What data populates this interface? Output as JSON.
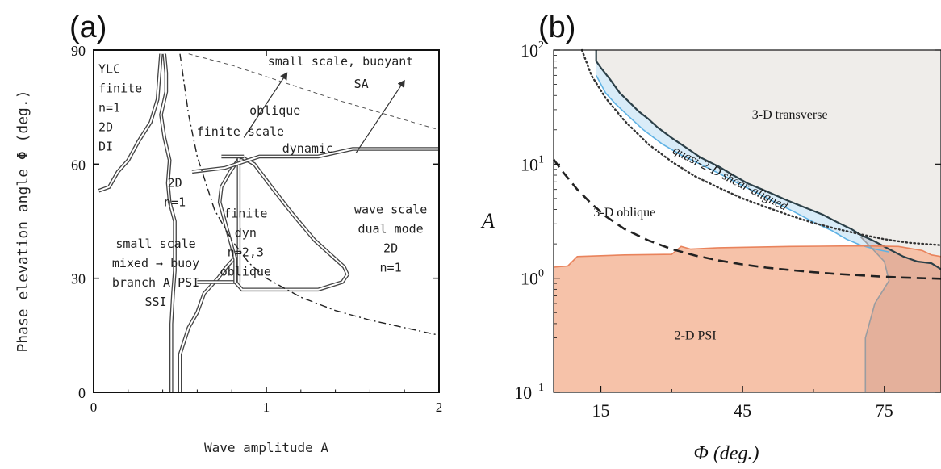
{
  "chart_data": [
    {
      "type": "area",
      "panel_label": "(a)",
      "xlabel": "Wave amplitude A",
      "ylabel": "Phase elevation angle Φ (deg.)",
      "xlim": [
        0,
        2
      ],
      "ylim": [
        0,
        90
      ],
      "x_ticks": [
        "0",
        "1",
        "2"
      ],
      "y_ticks": [
        "0",
        "30",
        "60",
        "90"
      ],
      "grid": false,
      "regions": [
        {
          "label_lines": [
            "YLC",
            "finite",
            "n=1",
            "2D",
            "DI"
          ],
          "x": 0.07,
          "y": 84
        },
        {
          "label_lines": [
            "small scale, buoyant"
          ],
          "x": 1.43,
          "y": 86
        },
        {
          "label_lines": [
            "SA"
          ],
          "x": 1.55,
          "y": 80
        },
        {
          "label_lines": [
            "oblique"
          ],
          "x": 1.05,
          "y": 73
        },
        {
          "label_lines": [
            "finite scale"
          ],
          "x": 0.85,
          "y": 67.5
        },
        {
          "label_lines": [
            "dynamic"
          ],
          "x": 1.24,
          "y": 63
        },
        {
          "label_lines": [
            "2D",
            "n=1"
          ],
          "x": 0.47,
          "y": 54
        },
        {
          "label_lines": [
            "small scale",
            "mixed → buoy",
            "branch A PSI",
            "SSI"
          ],
          "x": 0.36,
          "y": 38
        },
        {
          "label_lines": [
            "finite",
            "dyn",
            "n=2,3",
            "oblique"
          ],
          "x": 0.88,
          "y": 46
        },
        {
          "label_lines": [
            "wave scale",
            "dual mode",
            "2D",
            "n=1"
          ],
          "x": 1.72,
          "y": 47
        }
      ],
      "boundaries": [
        {
          "style": "double",
          "points": [
            [
              0.03,
              53
            ],
            [
              0.09,
              54
            ],
            [
              0.14,
              58
            ],
            [
              0.2,
              61
            ],
            [
              0.26,
              66
            ],
            [
              0.33,
              71
            ],
            [
              0.37,
              77
            ],
            [
              0.38,
              83
            ],
            [
              0.39,
              89
            ]
          ]
        },
        {
          "style": "double",
          "points": [
            [
              0.41,
              89
            ],
            [
              0.42,
              84
            ],
            [
              0.42,
              79
            ],
            [
              0.39,
              73
            ],
            [
              0.41,
              67
            ],
            [
              0.44,
              61
            ],
            [
              0.43,
              55
            ],
            [
              0.44,
              50
            ],
            [
              0.47,
              45
            ],
            [
              0.47,
              39
            ],
            [
              0.47,
              32
            ],
            [
              0.46,
              26
            ],
            [
              0.45,
              18
            ],
            [
              0.45,
              8
            ],
            [
              0.45,
              0
            ]
          ]
        },
        {
          "style": "double",
          "points": [
            [
              0.5,
              0
            ],
            [
              0.5,
              10
            ],
            [
              0.55,
              17
            ],
            [
              0.6,
              21
            ],
            [
              0.64,
              26
            ],
            [
              0.72,
              30
            ],
            [
              0.77,
              33
            ],
            [
              0.83,
              36
            ]
          ]
        },
        {
          "style": "double",
          "points": [
            [
              0.6,
              29
            ],
            [
              0.84,
              29
            ]
          ]
        },
        {
          "style": "double",
          "points": [
            [
              0.85,
              62
            ],
            [
              0.79,
              58
            ],
            [
              0.74,
              54
            ],
            [
              0.73,
              50
            ],
            [
              0.76,
              45
            ],
            [
              0.79,
              40
            ],
            [
              0.82,
              35
            ],
            [
              0.82,
              29
            ],
            [
              0.86,
              27
            ],
            [
              0.96,
              27
            ],
            [
              1.12,
              27
            ],
            [
              1.3,
              27
            ],
            [
              1.44,
              29
            ],
            [
              1.47,
              31
            ],
            [
              1.45,
              33
            ],
            [
              1.28,
              40
            ],
            [
              1.15,
              47
            ],
            [
              1.03,
              54
            ],
            [
              0.93,
              60
            ],
            [
              0.85,
              62
            ]
          ]
        },
        {
          "style": "double",
          "points": [
            [
              0.84,
              29
            ],
            [
              0.84,
              44
            ],
            [
              0.84,
              62
            ]
          ]
        },
        {
          "style": "double",
          "points": [
            [
              0.57,
              58
            ],
            [
              0.76,
              59
            ],
            [
              0.96,
              62
            ],
            [
              1.12,
              62
            ],
            [
              1.3,
              62
            ],
            [
              1.5,
              64
            ],
            [
              1.78,
              64
            ],
            [
              2.0,
              64
            ]
          ]
        },
        {
          "style": "double",
          "points": [
            [
              0.74,
              62
            ],
            [
              0.87,
              62
            ]
          ]
        },
        {
          "style": "dashed",
          "points": [
            [
              0.55,
              89
            ],
            [
              0.8,
              86
            ],
            [
              1.1,
              81.5
            ],
            [
              1.4,
              77
            ],
            [
              1.7,
              73
            ],
            [
              2.0,
              69
            ]
          ]
        },
        {
          "style": "dashdot",
          "points": [
            [
              0.5,
              89
            ],
            [
              0.55,
              73
            ],
            [
              0.6,
              62
            ],
            [
              0.7,
              48
            ],
            [
              0.8,
              40
            ],
            [
              0.9,
              34
            ],
            [
              1.0,
              30
            ],
            [
              1.2,
              25
            ],
            [
              1.4,
              21.5
            ],
            [
              1.6,
              19
            ],
            [
              1.8,
              17
            ],
            [
              2.0,
              15
            ]
          ]
        }
      ],
      "arrows": [
        {
          "from": [
            0.87,
            67
          ],
          "to": [
            1.12,
            84
          ]
        },
        {
          "from": [
            1.52,
            63
          ],
          "to": [
            1.8,
            82
          ]
        }
      ]
    },
    {
      "type": "area",
      "panel_label": "(b)",
      "xlabel": "Φ (deg.)",
      "ylabel": "A",
      "xlim": [
        5,
        87
      ],
      "ylim": [
        0.1,
        100
      ],
      "yscale": "log",
      "x_ticks": [
        15,
        45,
        75
      ],
      "y_ticks": [
        "10^-1",
        "10^0",
        "10^1",
        "10^2"
      ],
      "grid": false,
      "regions": [
        {
          "label": "3-D transverse",
          "x": 55,
          "y": 25,
          "color": "#efedea"
        },
        {
          "label": "quasi-2-D shear-aligned",
          "x": 42,
          "y": 7,
          "color": "#d9ecf8",
          "rotate": 27
        },
        {
          "label": "3-D oblique",
          "x": 20,
          "y": 3.5
        },
        {
          "label": "2-D PSI",
          "x": 35,
          "y": 0.29,
          "color": "#f6c2a9"
        }
      ],
      "series": [
        {
          "role": "boundary",
          "color": "#2c4048",
          "points": [
            [
              14,
              100
            ],
            [
              14,
              80
            ],
            [
              15,
              70
            ],
            [
              17,
              55
            ],
            [
              19,
              42
            ],
            [
              21,
              35
            ],
            [
              23,
              29
            ],
            [
              25,
              25
            ],
            [
              27,
              21
            ],
            [
              30,
              17
            ],
            [
              33,
              14
            ],
            [
              36,
              11.5
            ],
            [
              40,
              9.5
            ],
            [
              43,
              8
            ],
            [
              46,
              6.8
            ],
            [
              50,
              5.8
            ],
            [
              54,
              4.9
            ],
            [
              58,
              4.2
            ],
            [
              62,
              3.6
            ],
            [
              65,
              3.1
            ],
            [
              68,
              2.7
            ],
            [
              70,
              2.4
            ],
            [
              73,
              2.1
            ],
            [
              76,
              1.8
            ],
            [
              79,
              1.55
            ],
            [
              82,
              1.4
            ],
            [
              85,
              1.35
            ],
            [
              87,
              1.2
            ]
          ]
        },
        {
          "role": "boundary",
          "color": "#5fb2e4",
          "points": [
            [
              14,
              60
            ],
            [
              16,
              42
            ],
            [
              18,
              34
            ],
            [
              21,
              26
            ],
            [
              24,
              20
            ],
            [
              28,
              15
            ],
            [
              32,
              12
            ],
            [
              36,
              10
            ],
            [
              40,
              8.3
            ],
            [
              44,
              6.8
            ],
            [
              48,
              5.6
            ],
            [
              52,
              4.6
            ],
            [
              56,
              3.8
            ],
            [
              60,
              3.1
            ],
            [
              64,
              2.6
            ],
            [
              67,
              2.2
            ],
            [
              70,
              1.95
            ],
            [
              73,
              1.8
            ],
            [
              76,
              1.7
            ]
          ]
        },
        {
          "role": "boundary",
          "color": "#e9835c",
          "points": [
            [
              5,
              1.25
            ],
            [
              8,
              1.28
            ],
            [
              10,
              1.55
            ],
            [
              20,
              1.6
            ],
            [
              30,
              1.62
            ],
            [
              32,
              1.9
            ],
            [
              34,
              1.8
            ],
            [
              40,
              1.85
            ],
            [
              55,
              1.9
            ],
            [
              70,
              1.92
            ],
            [
              78,
              1.9
            ],
            [
              83,
              1.75
            ],
            [
              85,
              1.6
            ],
            [
              87,
              1.55
            ]
          ]
        },
        {
          "role": "boundary",
          "color": "#9a9ca0",
          "points": [
            [
              71,
              0.1
            ],
            [
              71,
              0.3
            ],
            [
              73,
              0.6
            ],
            [
              76,
              0.95
            ],
            [
              75,
              1.4
            ],
            [
              72,
              1.9
            ],
            [
              70,
              2.3
            ]
          ]
        },
        {
          "role": "curve",
          "style": "dotted",
          "color": "#333333",
          "points": [
            [
              11,
              100
            ],
            [
              13,
              60
            ],
            [
              16,
              38
            ],
            [
              20,
              24
            ],
            [
              25,
              15
            ],
            [
              30,
              10.5
            ],
            [
              35,
              7.8
            ],
            [
              40,
              6.2
            ],
            [
              45,
              5.0
            ],
            [
              50,
              4.2
            ],
            [
              55,
              3.55
            ],
            [
              60,
              3.05
            ],
            [
              65,
              2.7
            ],
            [
              70,
              2.42
            ],
            [
              75,
              2.2
            ],
            [
              80,
              2.05
            ],
            [
              87,
              1.95
            ]
          ]
        },
        {
          "role": "curve",
          "style": "dashed",
          "color": "#222222",
          "points": [
            [
              5,
              11
            ],
            [
              7,
              8.5
            ],
            [
              10,
              6
            ],
            [
              13,
              4.5
            ],
            [
              16,
              3.5
            ],
            [
              20,
              2.7
            ],
            [
              25,
              2.15
            ],
            [
              30,
              1.8
            ],
            [
              35,
              1.58
            ],
            [
              40,
              1.43
            ],
            [
              45,
              1.32
            ],
            [
              50,
              1.24
            ],
            [
              55,
              1.18
            ],
            [
              60,
              1.13
            ],
            [
              65,
              1.09
            ],
            [
              70,
              1.06
            ],
            [
              75,
              1.03
            ],
            [
              80,
              1.01
            ],
            [
              87,
              0.99
            ]
          ]
        }
      ]
    }
  ]
}
